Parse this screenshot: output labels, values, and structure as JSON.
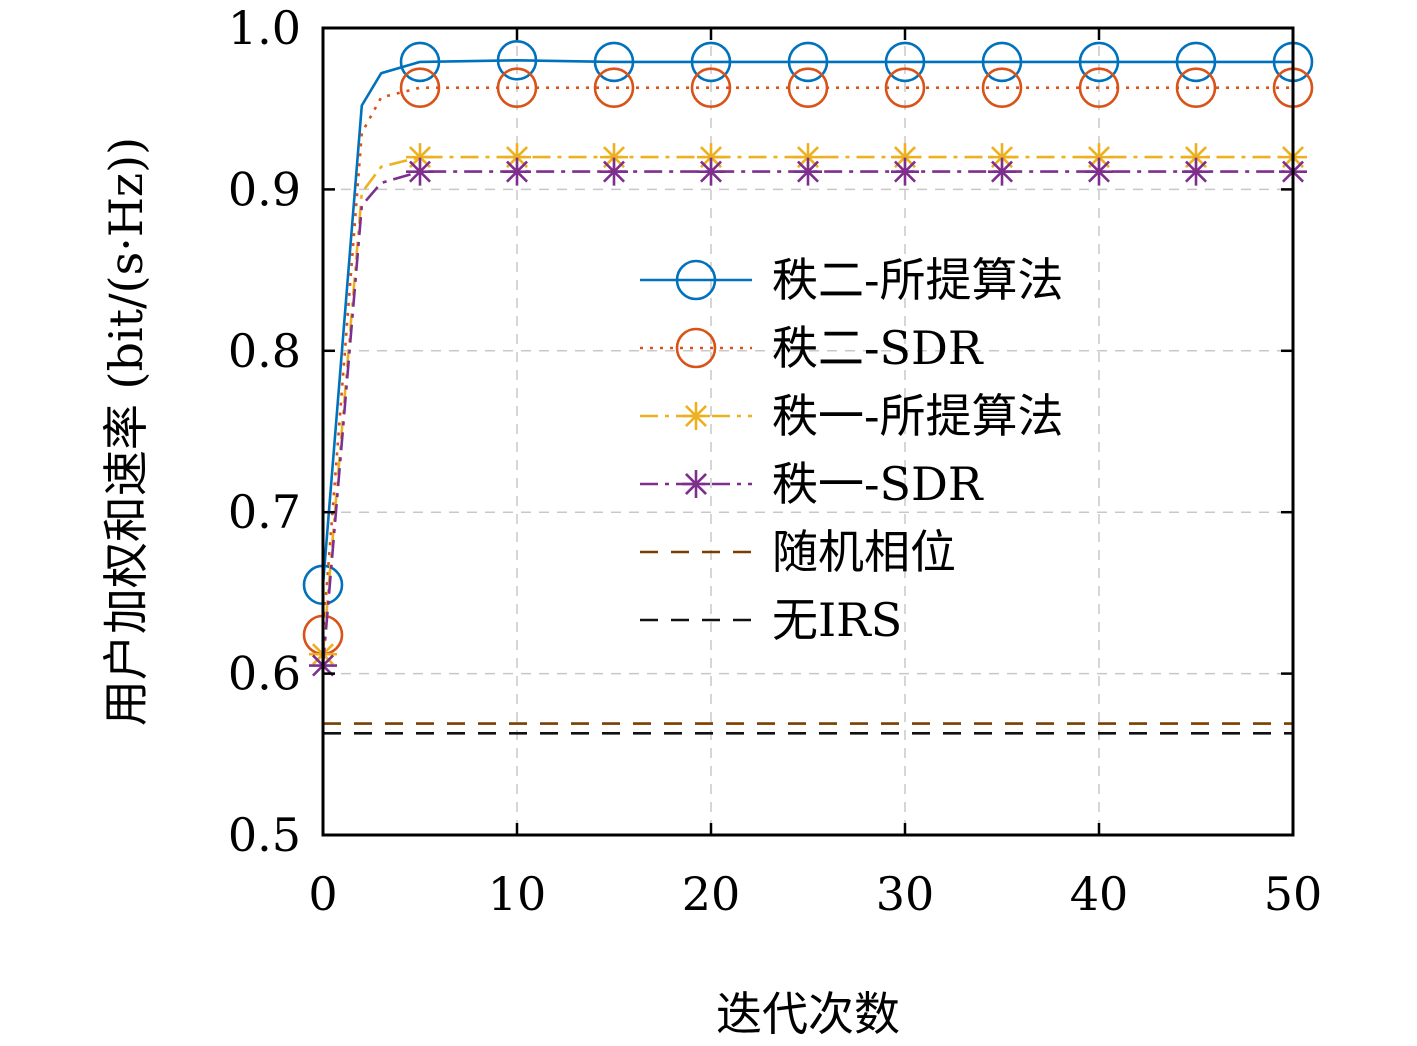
{
  "chart_data": {
    "type": "line",
    "title": "",
    "xlabel": "迭代次数",
    "ylabel": "用户加权和速率 (bit/(s·Hz))",
    "xlim": [
      0,
      50
    ],
    "ylim": [
      0.5,
      1.0
    ],
    "xticks": [
      0,
      10,
      20,
      30,
      40,
      50
    ],
    "xtick_labels": [
      "0",
      "10",
      "20",
      "30",
      "40",
      "50"
    ],
    "yticks": [
      0.5,
      0.6,
      0.7,
      0.8,
      0.9,
      1.0
    ],
    "ytick_labels": [
      "0.5",
      "0.6",
      "0.7",
      "0.8",
      "0.9",
      "1.0"
    ],
    "grid": true,
    "legend_position": "center-right",
    "series": [
      {
        "name": "秩二-所提算法",
        "color": "#0072BD",
        "line_style": "solid",
        "marker": "circle",
        "x": [
          0,
          2,
          3,
          5,
          10,
          15,
          20,
          25,
          30,
          35,
          40,
          45,
          50
        ],
        "values": [
          0.655,
          0.952,
          0.972,
          0.979,
          0.98,
          0.979,
          0.979,
          0.979,
          0.979,
          0.979,
          0.979,
          0.979,
          0.979
        ],
        "marker_x": [
          0,
          5,
          10,
          15,
          20,
          25,
          30,
          35,
          40,
          45,
          50
        ],
        "marker_values": [
          0.655,
          0.979,
          0.98,
          0.979,
          0.979,
          0.979,
          0.979,
          0.979,
          0.979,
          0.979,
          0.979
        ]
      },
      {
        "name": "秩二-SDR",
        "color": "#D95319",
        "line_style": "dotted",
        "marker": "circle",
        "x": [
          0,
          2,
          3,
          5,
          10,
          15,
          20,
          25,
          30,
          35,
          40,
          45,
          50
        ],
        "values": [
          0.624,
          0.935,
          0.957,
          0.963,
          0.963,
          0.963,
          0.963,
          0.963,
          0.963,
          0.963,
          0.963,
          0.963,
          0.963
        ],
        "marker_x": [
          0,
          5,
          10,
          15,
          20,
          25,
          30,
          35,
          40,
          45,
          50
        ],
        "marker_values": [
          0.624,
          0.963,
          0.963,
          0.963,
          0.963,
          0.963,
          0.963,
          0.963,
          0.963,
          0.963,
          0.963
        ]
      },
      {
        "name": "秩一-所提算法",
        "color": "#EDB120",
        "line_style": "dashdot",
        "marker": "asterisk",
        "x": [
          0,
          2,
          3,
          5,
          10,
          15,
          20,
          25,
          30,
          35,
          40,
          45,
          50
        ],
        "values": [
          0.612,
          0.898,
          0.914,
          0.92,
          0.92,
          0.92,
          0.92,
          0.92,
          0.92,
          0.92,
          0.92,
          0.92,
          0.92
        ],
        "marker_x": [
          0,
          5,
          10,
          15,
          20,
          25,
          30,
          35,
          40,
          45,
          50
        ],
        "marker_values": [
          0.612,
          0.92,
          0.92,
          0.92,
          0.92,
          0.92,
          0.92,
          0.92,
          0.92,
          0.92,
          0.92
        ]
      },
      {
        "name": "秩一-SDR",
        "color": "#7E2F8E",
        "line_style": "dashdot",
        "marker": "asterisk",
        "x": [
          0,
          2,
          3,
          5,
          10,
          15,
          20,
          25,
          30,
          35,
          40,
          45,
          50
        ],
        "values": [
          0.605,
          0.89,
          0.904,
          0.911,
          0.911,
          0.911,
          0.911,
          0.911,
          0.911,
          0.911,
          0.911,
          0.911,
          0.911
        ],
        "marker_x": [
          0,
          5,
          10,
          15,
          20,
          25,
          30,
          35,
          40,
          45,
          50
        ],
        "marker_values": [
          0.605,
          0.911,
          0.911,
          0.911,
          0.911,
          0.911,
          0.911,
          0.911,
          0.911,
          0.911,
          0.911
        ]
      },
      {
        "name": "随机相位",
        "color": "#7A3E00",
        "line_style": "dashed",
        "marker": "none",
        "x": [
          0,
          50
        ],
        "values": [
          0.569,
          0.569
        ]
      },
      {
        "name": "无IRS",
        "color": "#111111",
        "line_style": "dashed",
        "marker": "none",
        "x": [
          0,
          50
        ],
        "values": [
          0.563,
          0.563
        ]
      }
    ]
  }
}
